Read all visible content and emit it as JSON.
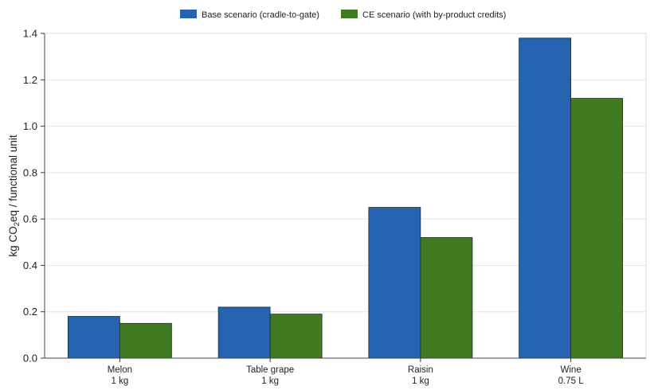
{
  "chart_data": {
    "type": "bar",
    "categories": [
      "Melon",
      "Table grape",
      "Raisin",
      "Wine"
    ],
    "category_units": [
      "1 kg",
      "1 kg",
      "1 kg",
      "0.75 L"
    ],
    "series": [
      {
        "name": "Base scenario (cradle-to-gate)",
        "color": "#2563b0",
        "values": [
          0.18,
          0.22,
          0.65,
          1.38
        ]
      },
      {
        "name": "CE scenario (with by-product credits)",
        "color": "#3f7a20",
        "values": [
          0.15,
          0.19,
          0.52,
          1.12
        ]
      }
    ],
    "ylabel": {
      "prefix": "kg CO",
      "subscript": "2",
      "suffix": "eq / functional unit"
    },
    "ylim": [
      0,
      1.4
    ],
    "yticks": [
      "0.0",
      "0.2",
      "0.4",
      "0.6",
      "0.8",
      "1.0",
      "1.2",
      "1.4"
    ],
    "grid": "horizontal",
    "legend_position": "top-center"
  }
}
